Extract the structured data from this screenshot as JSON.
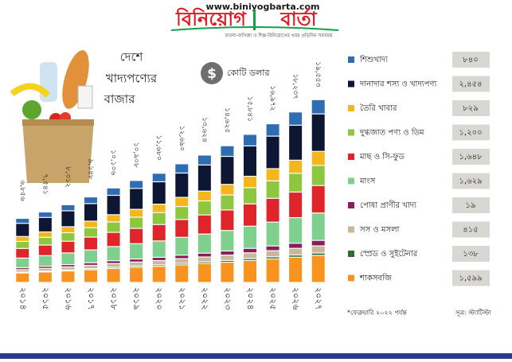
{
  "header": {
    "url": "www.biniyogbarta.com",
    "brand_left": "বিনিয়োগ",
    "brand_right": "বার্তা",
    "tagline": "ব্যবসা-বাণিজ্য ও শিল্প-বিনিয়োগের খবর প্রতিদিন সবসময়"
  },
  "chart_data": {
    "type": "stacked-bar",
    "title": [
      "দেশে",
      "খাদ্যপণ্যের",
      "বাজার"
    ],
    "unit": "কোটি ডলার",
    "categories": [
      "২০১৪",
      "২০১৫",
      "২০১৬",
      "২০১৭",
      "২০১৮",
      "২০১৯",
      "২০২০",
      "২০২১",
      "২০২২",
      "২০২৩",
      "২০২৪",
      "২০২৫",
      "২০২৬",
      "২০২৭"
    ],
    "total_labels": [
      "৬,৮৫৬",
      "৭,৫৪১",
      "৮,৩১২",
      "৯,১৪৮",
      "১০,১০৬",
      "১০,৯০৮",
      "১১,৬৮০",
      "১২,৬৯০",
      "১৩,৬২৪",
      "১৪,৬২৫",
      "১৫,৮৪১",
      "১৬,৯৭২",
      "১৮,২৩৭",
      "১৯,৫৫৩"
    ],
    "ylim": [
      0,
      20000
    ],
    "series": [
      {
        "name": "শিশুখাদ্য",
        "legend_value": "৮৪০",
        "color": "#2e6db4",
        "values": [
          535,
          588,
          648,
          714,
          788,
          851,
          911,
          990,
          1063,
          1141,
          1236,
          1324,
          1422,
          1525
        ]
      },
      {
        "name": "দানাদার শস্য ও খাদ্যপণ্য",
        "legend_value": "২,৪৫৪",
        "color": "#0d1733",
        "values": [
          1405,
          1546,
          1704,
          1875,
          2072,
          2236,
          2394,
          2601,
          2793,
          2998,
          3247,
          3479,
          3739,
          4008
        ]
      },
      {
        "name": "তৈরি খাবার",
        "legend_value": "৮২৯",
        "color": "#f5b51c",
        "values": [
          528,
          581,
          640,
          704,
          778,
          840,
          899,
          977,
          1049,
          1126,
          1220,
          1307,
          1404,
          1506
        ]
      },
      {
        "name": "দুগ্ধজাত পণ্য ও ডিম",
        "legend_value": "১,২০০",
        "color": "#8dc63f",
        "values": [
          754,
          830,
          914,
          1006,
          1112,
          1200,
          1285,
          1396,
          1499,
          1609,
          1743,
          1867,
          2006,
          2151
        ]
      },
      {
        "name": "মাছ ও সি-ফুড",
        "legend_value": "১,৬৪৮",
        "color": "#e0242b",
        "values": [
          1028,
          1131,
          1247,
          1372,
          1516,
          1636,
          1752,
          1904,
          2044,
          2194,
          2376,
          2546,
          2736,
          2933
        ]
      },
      {
        "name": "মাংস",
        "legend_value": "১,৬২৯",
        "color": "#7fcf8e",
        "values": [
          1028,
          1131,
          1247,
          1372,
          1516,
          1636,
          1752,
          1904,
          2044,
          2194,
          2376,
          2546,
          2736,
          2933
        ]
      },
      {
        "name": "পোষা প্রাণীর খাদ্য",
        "legend_value": "১৯",
        "color": "#8b1e5a",
        "values": [
          206,
          226,
          249,
          274,
          303,
          327,
          350,
          381,
          409,
          439,
          475,
          509,
          547,
          587
        ]
      },
      {
        "name": "সস ও মসলা",
        "legend_value": "৪১৫",
        "color": "#c8b89a",
        "values": [
          267,
          294,
          324,
          357,
          394,
          425,
          456,
          495,
          531,
          570,
          618,
          662,
          711,
          763
        ]
      },
      {
        "name": "স্প্রেড ও সুইটেনার",
        "legend_value": "১৩৮",
        "color": "#2f6b2f",
        "values": [
          89,
          98,
          108,
          119,
          131,
          142,
          152,
          165,
          177,
          190,
          206,
          221,
          237,
          254
        ]
      },
      {
        "name": "শাকসবজি",
        "legend_value": "১,৫৯৯",
        "color": "#f7931e",
        "values": [
          1015,
          1116,
          1230,
          1354,
          1496,
          1614,
          1729,
          1878,
          2016,
          2165,
          2344,
          2512,
          2699,
          2894
        ]
      }
    ],
    "note": "*ফেব্রুয়ারি ২০২২ পর্যন্ত",
    "source": "সূত্র: স্ট্যাটিস্টা"
  }
}
